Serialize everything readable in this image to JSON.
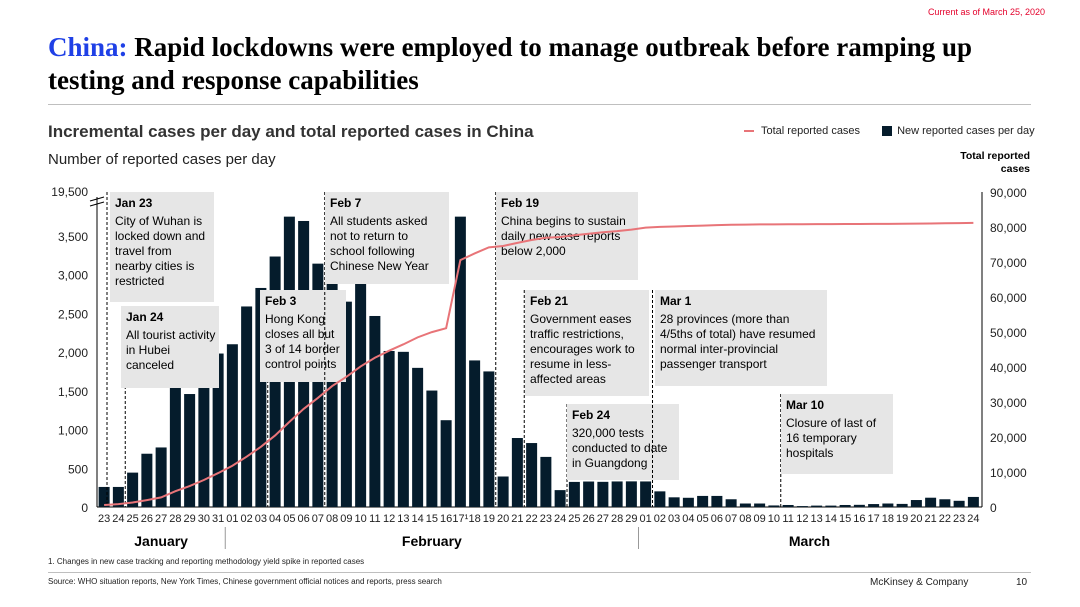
{
  "header": {
    "date_note": "Current as of March 25, 2020",
    "title_prefix": "China:",
    "title_rest": " Rapid lockdowns were employed to manage outbreak before ramping up testing and response capabilities"
  },
  "footer": {
    "footnote": "1.    Changes in new case tracking and reporting methodology yield spike in reported cases",
    "source": "Source: WHO situation reports, New York Times, Chinese government official notices and reports, press search",
    "brand": "McKinsey & Company",
    "page_number": "10"
  },
  "colors": {
    "title_accent": "#1f40e6",
    "bar": "#051c2c",
    "line": "#e87478",
    "annotation_bg": "#e6e6e6",
    "date_note": "#e4002b"
  },
  "chart_data": {
    "type": "bar",
    "title": "Incremental cases per day and total reported cases in China",
    "ylabel": "Number of reported cases per day",
    "y2label": "Total reported cases",
    "legend": {
      "placement": "top-right",
      "line_label": "Total reported cases",
      "bar_label": "New reported cases per day"
    },
    "categories": [
      "23",
      "24",
      "25",
      "26",
      "27",
      "28",
      "29",
      "30",
      "31",
      "01",
      "02",
      "03",
      "04",
      "05",
      "06",
      "07",
      "08",
      "09",
      "10",
      "11",
      "12",
      "13",
      "14",
      "15",
      "16",
      "17¹",
      "18",
      "19",
      "20",
      "21",
      "22",
      "23",
      "24",
      "25",
      "26",
      "27",
      "28",
      "29",
      "01",
      "02",
      "03",
      "04",
      "05",
      "06",
      "07",
      "08",
      "09",
      "10",
      "11",
      "12",
      "13",
      "14",
      "15",
      "16",
      "17",
      "18",
      "19",
      "20",
      "21",
      "22",
      "23",
      "24"
    ],
    "months": [
      {
        "label": "January",
        "start": 0,
        "end": 8
      },
      {
        "label": "February",
        "start": 9,
        "end": 37
      },
      {
        "label": "March",
        "start": 38,
        "end": 61
      }
    ],
    "y_axis_break": {
      "break_from": 3750,
      "break_to": 19500
    },
    "yticks": [
      0,
      500,
      1000,
      1500,
      2000,
      2500,
      3000,
      3500
    ],
    "ytick_labels": [
      "0",
      "500",
      "1,000",
      "1,500",
      "2,000",
      "2,500",
      "3,000",
      "3,500"
    ],
    "ytop_label": "19,500",
    "y2lim": [
      0,
      90000
    ],
    "y2ticks": [
      0,
      10000,
      20000,
      30000,
      40000,
      50000,
      60000,
      70000,
      80000,
      90000
    ],
    "y2tick_labels": [
      "0",
      "10,000",
      "20,000",
      "30,000",
      "40,000",
      "50,000",
      "60,000",
      "70,000",
      "80,000",
      "90,000"
    ],
    "series": [
      {
        "name": "New reported cases per day",
        "type": "bar",
        "values": [
          259,
          259,
          444,
          688,
          769,
          1771,
          1459,
          1737,
          1982,
          2102,
          2590,
          2829,
          3235,
          3887,
          3694,
          3143,
          3385,
          2652,
          2973,
          2467,
          2015,
          2004,
          1797,
          1504,
          1121,
          19500,
          1893,
          1751,
          394,
          891,
          826,
          647,
          218,
          324,
          329,
          325,
          330,
          331,
          330,
          202,
          125,
          119,
          143,
          143,
          100,
          45,
          45,
          20,
          26,
          12,
          18,
          18,
          26,
          28,
          38,
          45,
          40,
          90,
          120,
          100,
          80,
          130
        ]
      },
      {
        "name": "Total reported cases",
        "type": "line",
        "values": [
          571,
          830,
          1287,
          1975,
          2744,
          4515,
          5974,
          7711,
          9692,
          11791,
          14380,
          17205,
          20438,
          24324,
          28018,
          31161,
          34546,
          37198,
          40171,
          42638,
          44653,
          46472,
          48467,
          49970,
          51091,
          70548,
          72436,
          74185,
          74576,
          75465,
          76288,
          76936,
          77150,
          77658,
          78064,
          78497,
          78824,
          79251,
          79824,
          80026,
          80151,
          80270,
          80409,
          80552,
          80651,
          80695,
          80735,
          80754,
          80778,
          80793,
          80813,
          80824,
          80844,
          80860,
          80881,
          80894,
          80928,
          80967,
          81008,
          81054,
          81093,
          81171
        ]
      }
    ],
    "annotations": [
      {
        "heading": "Jan 23",
        "text": "City of Wuhan is locked down and travel from nearby cities is restricted",
        "index": 0
      },
      {
        "heading": "Jan 24",
        "text": "All tourist activity in Hubei canceled",
        "index": 1
      },
      {
        "heading": "Feb 3",
        "text": "Hong Kong closes all but 3 of 14 border control points",
        "index": 11
      },
      {
        "heading": "Feb 7",
        "text": "All students asked not to return to school following Chinese New Year",
        "index": 15
      },
      {
        "heading": "Feb 19",
        "text": "China begins to sustain daily new case reports below 2,000",
        "index": 27
      },
      {
        "heading": "Feb 21",
        "text": "Government eases traffic restrictions, encourages work to resume in less-affected areas",
        "index": 29
      },
      {
        "heading": "Feb 24",
        "text": "320,000 tests conducted to date in Guangdong",
        "index": 32
      },
      {
        "heading": "Mar 1",
        "text": "28 provinces (more than 4/5ths of total) have resumed normal inter-provincial passenger transport",
        "index": 38
      },
      {
        "heading": "Mar 10",
        "text": "Closure of last of 16 temporary hospitals",
        "index": 47
      }
    ]
  }
}
